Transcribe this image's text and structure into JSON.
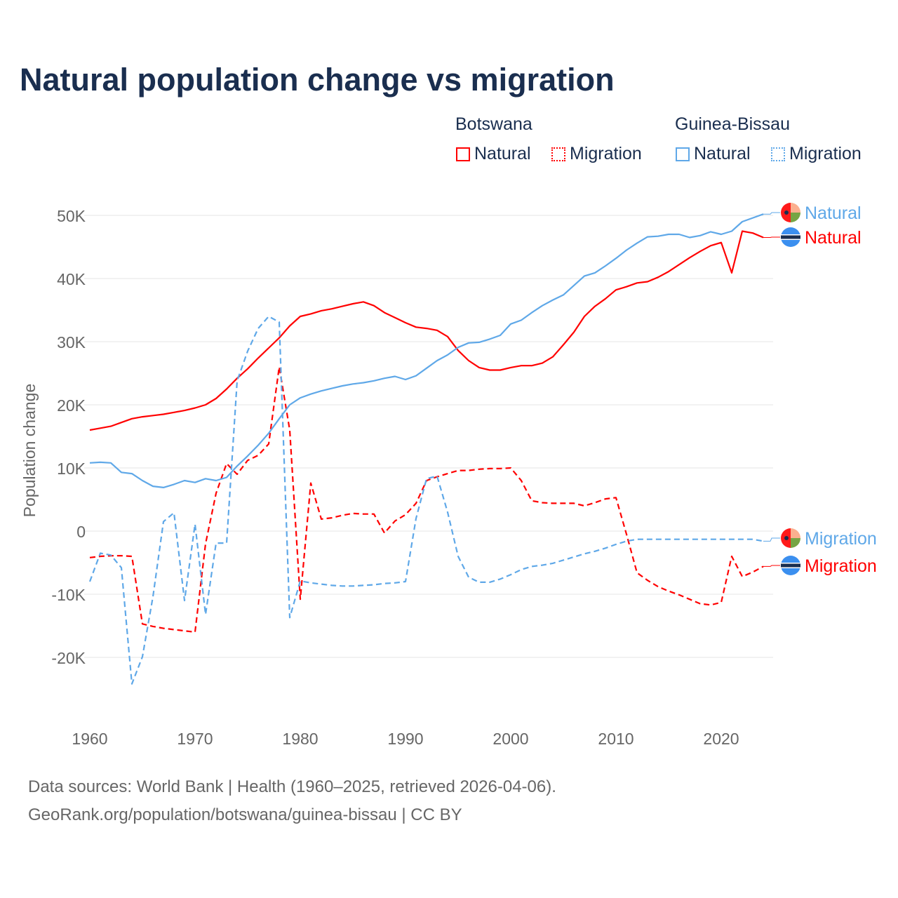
{
  "chart_data": {
    "type": "line",
    "title": "Natural population change vs migration",
    "xlabel": "",
    "ylabel": "Population change",
    "xlim": [
      1960,
      2024
    ],
    "ylim": [
      -25000,
      52000
    ],
    "yticks": [
      -20000,
      -10000,
      0,
      10000,
      20000,
      30000,
      40000,
      50000
    ],
    "ytick_labels": [
      "-20K",
      "-10K",
      "0",
      "10K",
      "20K",
      "30K",
      "40K",
      "50K"
    ],
    "xticks": [
      1960,
      1970,
      1980,
      1990,
      2000,
      2010,
      2020
    ],
    "xtick_labels": [
      "1960",
      "1970",
      "1980",
      "1990",
      "2000",
      "2010",
      "2020"
    ],
    "grid": true,
    "x_start": 1960,
    "legend": {
      "groups": [
        {
          "name": "Botswana",
          "items": [
            "Natural",
            "Migration"
          ],
          "color": "#ff0000"
        },
        {
          "name": "Guinea-Bissau",
          "items": [
            "Natural",
            "Migration"
          ],
          "color": "#5fa8e8"
        }
      ],
      "placement": "top-right"
    },
    "series": [
      {
        "name": "Botswana Natural",
        "end_label": "Natural",
        "color": "#ff0000",
        "dash": false,
        "values": [
          16000,
          16300,
          16600,
          17200,
          17800,
          18100,
          18300,
          18500,
          18800,
          19100,
          19500,
          20000,
          21000,
          22500,
          24200,
          25700,
          27400,
          29000,
          30600,
          32500,
          34000,
          34400,
          34900,
          35200,
          35600,
          36000,
          36300,
          35700,
          34600,
          33800,
          33000,
          32300,
          32100,
          31800,
          30800,
          28600,
          27000,
          25900,
          25500,
          25500,
          25900,
          26200,
          26200,
          26600,
          27600,
          29500,
          31500,
          34000,
          35600,
          36800,
          38200,
          38700,
          39300,
          39500,
          40200,
          41100,
          42200,
          43300,
          44300,
          45200,
          45700,
          40900,
          47500,
          47200,
          46500
        ]
      },
      {
        "name": "Botswana Migration",
        "end_label": "Migration",
        "color": "#ff0000",
        "dash": true,
        "values": [
          -4200,
          -4000,
          -3900,
          -3900,
          -4000,
          -14700,
          -15100,
          -15400,
          -15600,
          -15800,
          -16000,
          -2000,
          6000,
          10700,
          9000,
          11200,
          12000,
          13800,
          26000,
          16000,
          -10800,
          7600,
          1900,
          2100,
          2500,
          2800,
          2700,
          2700,
          -300,
          1600,
          2600,
          4400,
          8000,
          8600,
          9100,
          9600,
          9600,
          9800,
          9900,
          9900,
          10000,
          8000,
          4800,
          4500,
          4400,
          4400,
          4400,
          4000,
          4500,
          5100,
          5300,
          -500,
          -6600,
          -7800,
          -8800,
          -9500,
          -10100,
          -10800,
          -11500,
          -11700,
          -11300,
          -4000,
          -7200,
          -6500,
          -5600
        ]
      },
      {
        "name": "Guinea-Bissau Natural",
        "end_label": "Natural",
        "color": "#5fa8e8",
        "dash": false,
        "values": [
          10800,
          10900,
          10800,
          9300,
          9100,
          8000,
          7100,
          6900,
          7400,
          8000,
          7700,
          8300,
          8000,
          8500,
          10300,
          11900,
          13600,
          15500,
          17800,
          20000,
          21100,
          21700,
          22200,
          22600,
          23000,
          23300,
          23500,
          23800,
          24200,
          24500,
          24000,
          24600,
          25800,
          27000,
          27900,
          29100,
          29800,
          29900,
          30400,
          31000,
          32800,
          33400,
          34600,
          35700,
          36600,
          37400,
          38900,
          40400,
          40900,
          42000,
          43200,
          44500,
          45600,
          46600,
          46700,
          47000,
          47000,
          46500,
          46800,
          47400,
          47000,
          47500,
          49000,
          49600,
          50200
        ]
      },
      {
        "name": "Guinea-Bissau Migration",
        "end_label": "Migration",
        "color": "#5fa8e8",
        "dash": true,
        "values": [
          -8000,
          -3500,
          -3800,
          -5800,
          -24200,
          -19900,
          -10400,
          1500,
          2900,
          -11000,
          1100,
          -13200,
          -1900,
          -1900,
          23800,
          28500,
          32100,
          34000,
          33100,
          -13700,
          -7900,
          -8200,
          -8400,
          -8600,
          -8700,
          -8700,
          -8600,
          -8500,
          -8300,
          -8200,
          -8000,
          2000,
          8300,
          8700,
          3000,
          -4000,
          -7300,
          -8100,
          -8100,
          -7600,
          -6900,
          -6100,
          -5600,
          -5400,
          -5100,
          -4600,
          -4100,
          -3600,
          -3200,
          -2700,
          -2100,
          -1600,
          -1300,
          -1300,
          -1300,
          -1300,
          -1300,
          -1300,
          -1300,
          -1300,
          -1300,
          -1300,
          -1300,
          -1300,
          -1600
        ]
      }
    ]
  },
  "sources": {
    "line1": "Data sources: World Bank | Health (1960–2025, retrieved 2026-04-06).",
    "line2": "GeoRank.org/population/botswana/guinea-bissau | CC BY"
  }
}
